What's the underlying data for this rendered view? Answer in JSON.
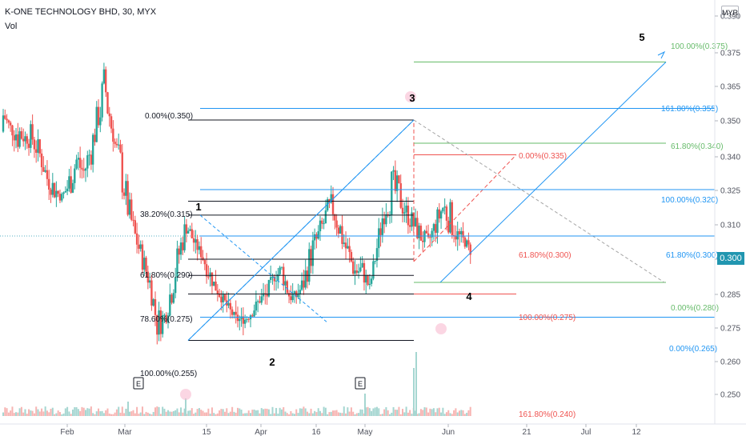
{
  "header": {
    "title": "K-ONE TECHNOLOGY BHD, 30, MYX",
    "indicator": "Vol",
    "currency": "MYR"
  },
  "current_price": "0.300",
  "colors": {
    "up": "#26a69a",
    "down": "#ef5350",
    "blue": "#2196f3",
    "green": "#66bb6a",
    "red": "#ef5350",
    "black": "#131722",
    "gray": "#9e9e9e"
  },
  "chart_data": {
    "type": "candlestick",
    "ylim": [
      0.245,
      0.396
    ],
    "y_ticks": [
      "0.390",
      "0.375",
      "0.365",
      "0.350",
      "0.340",
      "0.325",
      "0.310",
      "0.300",
      "0.285",
      "0.275",
      "0.260",
      "0.250"
    ],
    "x_ticks": [
      "Feb",
      "Mar",
      "15",
      "Apr",
      "16",
      "May",
      "Jun",
      "21",
      "Jul",
      "12"
    ],
    "price_path": [
      [
        0.345,
        0.35
      ],
      [
        0.345,
        0.345
      ],
      [
        0.355,
        0.335
      ],
      [
        0.345,
        0.34
      ],
      [
        0.35,
        0.335
      ],
      [
        0.34,
        0.33
      ],
      [
        0.33,
        0.32
      ],
      [
        0.325,
        0.315
      ],
      [
        0.318,
        0.315
      ],
      [
        0.33,
        0.315
      ],
      [
        0.34,
        0.325
      ],
      [
        0.335,
        0.32
      ],
      [
        0.345,
        0.33
      ],
      [
        0.36,
        0.345
      ],
      [
        0.38,
        0.345
      ],
      [
        0.345,
        0.34
      ],
      [
        0.34,
        0.32
      ],
      [
        0.32,
        0.305
      ],
      [
        0.305,
        0.295
      ],
      [
        0.295,
        0.285
      ],
      [
        0.285,
        0.275
      ],
      [
        0.27,
        0.255
      ],
      [
        0.27,
        0.26
      ],
      [
        0.285,
        0.27
      ],
      [
        0.3,
        0.285
      ],
      [
        0.31,
        0.3
      ],
      [
        0.3,
        0.295
      ],
      [
        0.295,
        0.29
      ],
      [
        0.29,
        0.28
      ],
      [
        0.28,
        0.275
      ],
      [
        0.275,
        0.27
      ],
      [
        0.27,
        0.265
      ],
      [
        0.265,
        0.262
      ],
      [
        0.265,
        0.262
      ],
      [
        0.27,
        0.265
      ],
      [
        0.275,
        0.27
      ],
      [
        0.28,
        0.27
      ],
      [
        0.285,
        0.28
      ],
      [
        0.29,
        0.28
      ],
      [
        0.28,
        0.27
      ],
      [
        0.275,
        0.272
      ],
      [
        0.285,
        0.275
      ],
      [
        0.3,
        0.285
      ],
      [
        0.305,
        0.295
      ],
      [
        0.315,
        0.3
      ],
      [
        0.32,
        0.305
      ],
      [
        0.31,
        0.295
      ],
      [
        0.3,
        0.285
      ],
      [
        0.29,
        0.28
      ],
      [
        0.29,
        0.28
      ],
      [
        0.28,
        0.275
      ],
      [
        0.3,
        0.29
      ],
      [
        0.32,
        0.305
      ],
      [
        0.33,
        0.31
      ],
      [
        0.325,
        0.31
      ],
      [
        0.315,
        0.305
      ],
      [
        0.31,
        0.3
      ],
      [
        0.305,
        0.295
      ],
      [
        0.3,
        0.295
      ],
      [
        0.31,
        0.3
      ],
      [
        0.32,
        0.305
      ],
      [
        0.315,
        0.3
      ],
      [
        0.305,
        0.295
      ],
      [
        0.3,
        0.295
      ],
      [
        0.295,
        0.29
      ]
    ],
    "fib_labels": [
      {
        "text": "0.00%(0.350)",
        "color": "#131722"
      },
      {
        "text": "38.20%(0.315)",
        "color": "#131722"
      },
      {
        "text": "61.80%(0.290)",
        "color": "#131722"
      },
      {
        "text": "78.60%(0.275)",
        "color": "#131722"
      },
      {
        "text": "100.00%(0.255)",
        "color": "#131722"
      },
      {
        "text": "0.00%(0.335)",
        "color": "#ef5350"
      },
      {
        "text": "61.80%(0.300)",
        "color": "#ef5350"
      },
      {
        "text": "100.00%(0.275)",
        "color": "#ef5350"
      },
      {
        "text": "161.80%(0.240)",
        "color": "#ef5350"
      },
      {
        "text": "100.00%(0.375)",
        "color": "#66bb6a"
      },
      {
        "text": "61.80%(0.340)",
        "color": "#66bb6a"
      },
      {
        "text": "0.00%(0.280)",
        "color": "#66bb6a"
      },
      {
        "text": "161.80%(0.355)",
        "color": "#2196f3"
      },
      {
        "text": "100.00%(0.320)",
        "color": "#2196f3"
      },
      {
        "text": "61.80%(0.300)",
        "color": "#2196f3"
      },
      {
        "text": "0.00%(0.265)",
        "color": "#2196f3"
      }
    ],
    "wave_labels": [
      "1",
      "2",
      "3",
      "4",
      "5"
    ],
    "earnings_markers": [
      "E",
      "E"
    ]
  }
}
